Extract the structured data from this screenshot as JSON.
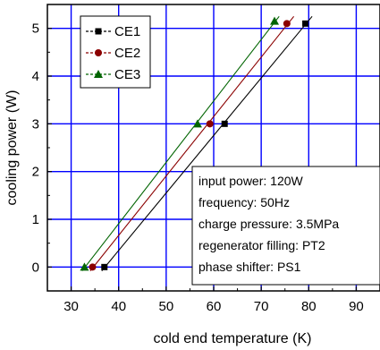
{
  "chart_data": {
    "type": "line",
    "title": "",
    "xlabel": "cold end temperature (K)",
    "ylabel": "cooling power (W)",
    "xlim": [
      25,
      95
    ],
    "ylim": [
      -0.5,
      5.5
    ],
    "xticks": [
      "30",
      "40",
      "50",
      "60",
      "70",
      "80",
      "90"
    ],
    "yticks": [
      "0",
      "1",
      "2",
      "3",
      "4",
      "5"
    ],
    "grid": true,
    "legend_position": "top-left",
    "series": [
      {
        "name": "CE1",
        "marker": "square",
        "color": "#000000",
        "x": [
          37.0,
          62.3,
          79.3
        ],
        "y": [
          0.0,
          3.0,
          5.1
        ]
      },
      {
        "name": "CE2",
        "marker": "circle",
        "color": "#8b0000",
        "x": [
          34.5,
          59.2,
          75.4
        ],
        "y": [
          0.0,
          3.0,
          5.1
        ]
      },
      {
        "name": "CE3",
        "marker": "triangle",
        "color": "#006400",
        "x": [
          32.8,
          56.6,
          72.8
        ],
        "y": [
          0.0,
          3.0,
          5.15
        ]
      }
    ],
    "annotation": [
      "input power:  120W",
      "frequency:  50Hz",
      "charge pressure: 3.5MPa",
      "regenerator filling:  PT2",
      "phase shifter:  PS1"
    ],
    "colors": {
      "grid": "#0000ff",
      "axis": "#000000"
    }
  }
}
